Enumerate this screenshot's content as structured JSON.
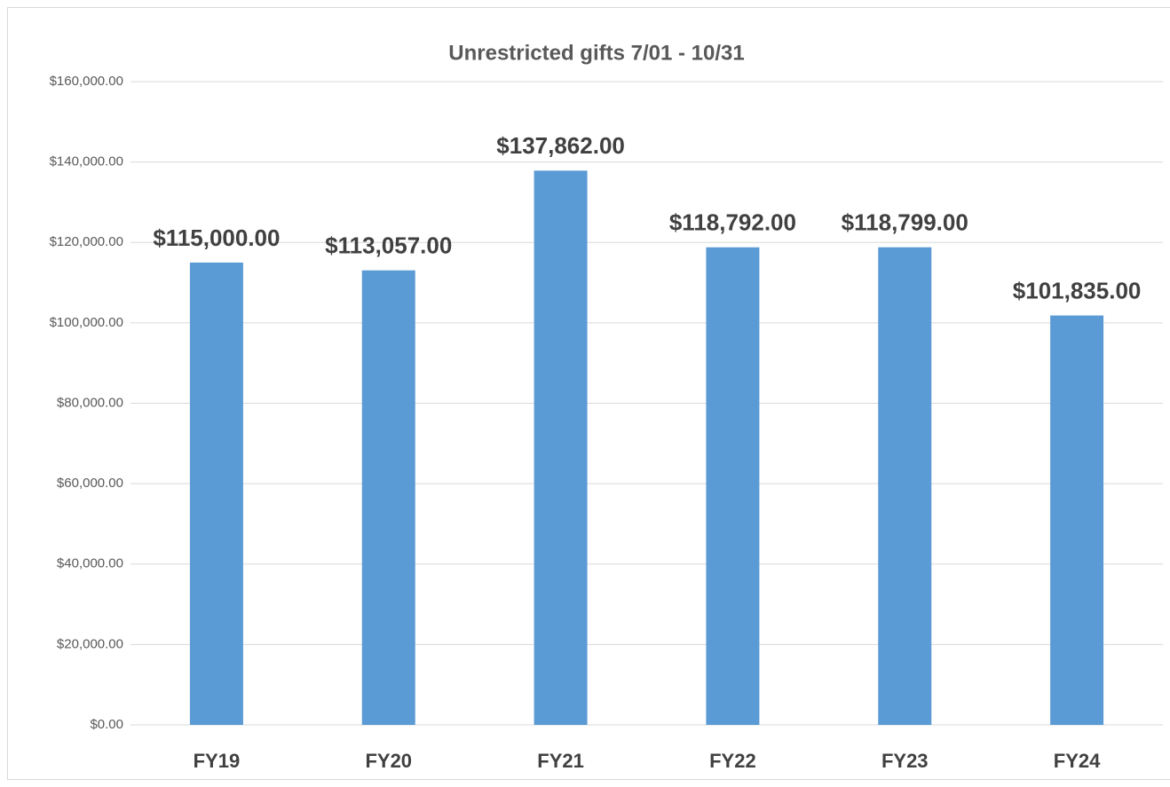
{
  "chart_data": {
    "type": "bar",
    "title": "Unrestricted gifts 7/01 - 10/31",
    "categories": [
      "FY19",
      "FY20",
      "FY21",
      "FY22",
      "FY23",
      "FY24"
    ],
    "values": [
      115000,
      113057,
      137862,
      118792,
      118799,
      101835
    ],
    "value_labels": [
      "$115,000.00",
      "$113,057.00",
      "$137,862.00",
      "$118,792.00",
      "$118,799.00",
      "$101,835.00"
    ],
    "color": "#5b9bd5",
    "ylim": [
      0,
      160000
    ],
    "yticks": [
      {
        "value": 0,
        "label": "$0.00"
      },
      {
        "value": 20000,
        "label": "$20,000.00"
      },
      {
        "value": 40000,
        "label": "$40,000.00"
      },
      {
        "value": 60000,
        "label": "$60,000.00"
      },
      {
        "value": 80000,
        "label": "$80,000.00"
      },
      {
        "value": 100000,
        "label": "$100,000.00"
      },
      {
        "value": 120000,
        "label": "$120,000.00"
      },
      {
        "value": 140000,
        "label": "$140,000.00"
      },
      {
        "value": 160000,
        "label": "$160,000.00"
      }
    ],
    "grid": true
  }
}
